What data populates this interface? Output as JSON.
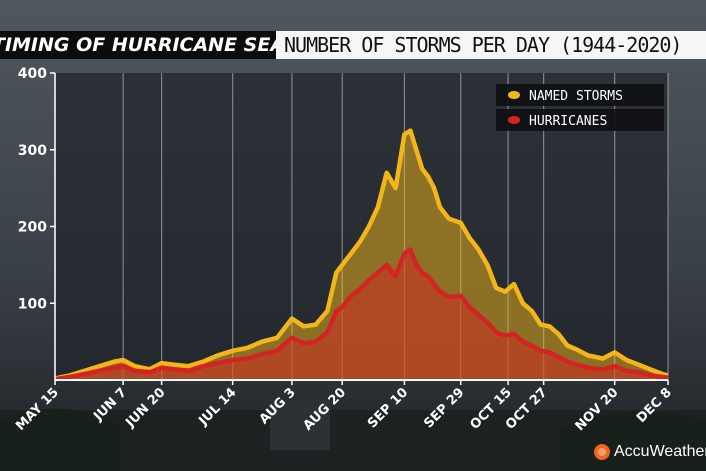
{
  "header": {
    "left_title": "TIMING OF HURRICANE SEASON",
    "right_title": "NUMBER OF STORMS PER DAY (1944-2020)"
  },
  "brand": {
    "name": "AccuWeather",
    "icon": "sun-icon",
    "accent": "#f26522"
  },
  "chart_data": {
    "type": "area",
    "title": "NUMBER OF STORMS PER DAY (1944-2020)",
    "ylim": [
      0,
      400
    ],
    "yticks": [
      100,
      200,
      300,
      400
    ],
    "xticks": [
      {
        "label": "MAY 15",
        "day": 0
      },
      {
        "label": "JUN 7",
        "day": 23
      },
      {
        "label": "JUN 20",
        "day": 36
      },
      {
        "label": "JUL 14",
        "day": 60
      },
      {
        "label": "AUG 3",
        "day": 80
      },
      {
        "label": "AUG 20",
        "day": 97
      },
      {
        "label": "SEP 10",
        "day": 118
      },
      {
        "label": "SEP 29",
        "day": 137
      },
      {
        "label": "OCT 15",
        "day": 153
      },
      {
        "label": "OCT 27",
        "day": 165
      },
      {
        "label": "NOV 20",
        "day": 189
      },
      {
        "label": "DEC 8",
        "day": 207
      }
    ],
    "grid": true,
    "legend_position": "top-right",
    "series": [
      {
        "name": "NAMED STORMS",
        "color": "#f2b61a",
        "points": [
          [
            0,
            2
          ],
          [
            5,
            6
          ],
          [
            10,
            12
          ],
          [
            15,
            18
          ],
          [
            20,
            24
          ],
          [
            23,
            26
          ],
          [
            27,
            18
          ],
          [
            32,
            14
          ],
          [
            36,
            22
          ],
          [
            40,
            20
          ],
          [
            45,
            18
          ],
          [
            50,
            24
          ],
          [
            55,
            32
          ],
          [
            60,
            38
          ],
          [
            65,
            42
          ],
          [
            70,
            50
          ],
          [
            75,
            55
          ],
          [
            80,
            80
          ],
          [
            84,
            70
          ],
          [
            88,
            72
          ],
          [
            92,
            90
          ],
          [
            95,
            140
          ],
          [
            97,
            150
          ],
          [
            100,
            165
          ],
          [
            103,
            180
          ],
          [
            106,
            200
          ],
          [
            109,
            225
          ],
          [
            112,
            270
          ],
          [
            115,
            250
          ],
          [
            118,
            320
          ],
          [
            120,
            325
          ],
          [
            122,
            300
          ],
          [
            124,
            275
          ],
          [
            126,
            265
          ],
          [
            128,
            250
          ],
          [
            130,
            225
          ],
          [
            133,
            210
          ],
          [
            137,
            205
          ],
          [
            140,
            185
          ],
          [
            143,
            170
          ],
          [
            146,
            150
          ],
          [
            149,
            120
          ],
          [
            152,
            115
          ],
          [
            155,
            125
          ],
          [
            158,
            100
          ],
          [
            161,
            90
          ],
          [
            164,
            72
          ],
          [
            167,
            70
          ],
          [
            170,
            60
          ],
          [
            173,
            45
          ],
          [
            176,
            40
          ],
          [
            180,
            32
          ],
          [
            185,
            28
          ],
          [
            189,
            36
          ],
          [
            193,
            26
          ],
          [
            197,
            20
          ],
          [
            201,
            14
          ],
          [
            205,
            8
          ],
          [
            207,
            6
          ]
        ]
      },
      {
        "name": "HURRICANES",
        "color": "#d42323",
        "points": [
          [
            0,
            1
          ],
          [
            5,
            4
          ],
          [
            10,
            8
          ],
          [
            15,
            12
          ],
          [
            20,
            16
          ],
          [
            23,
            18
          ],
          [
            27,
            12
          ],
          [
            32,
            10
          ],
          [
            36,
            16
          ],
          [
            40,
            14
          ],
          [
            45,
            12
          ],
          [
            50,
            18
          ],
          [
            55,
            22
          ],
          [
            60,
            26
          ],
          [
            65,
            28
          ],
          [
            70,
            34
          ],
          [
            75,
            38
          ],
          [
            80,
            55
          ],
          [
            84,
            48
          ],
          [
            88,
            50
          ],
          [
            92,
            62
          ],
          [
            95,
            90
          ],
          [
            97,
            95
          ],
          [
            100,
            110
          ],
          [
            103,
            118
          ],
          [
            106,
            130
          ],
          [
            109,
            140
          ],
          [
            112,
            150
          ],
          [
            115,
            135
          ],
          [
            118,
            165
          ],
          [
            120,
            170
          ],
          [
            122,
            150
          ],
          [
            124,
            140
          ],
          [
            126,
            135
          ],
          [
            128,
            125
          ],
          [
            130,
            115
          ],
          [
            133,
            108
          ],
          [
            137,
            110
          ],
          [
            140,
            95
          ],
          [
            143,
            85
          ],
          [
            146,
            75
          ],
          [
            149,
            62
          ],
          [
            152,
            58
          ],
          [
            155,
            60
          ],
          [
            158,
            50
          ],
          [
            161,
            45
          ],
          [
            164,
            38
          ],
          [
            167,
            36
          ],
          [
            170,
            30
          ],
          [
            173,
            24
          ],
          [
            176,
            20
          ],
          [
            180,
            16
          ],
          [
            185,
            14
          ],
          [
            189,
            18
          ],
          [
            193,
            12
          ],
          [
            197,
            10
          ],
          [
            201,
            6
          ],
          [
            205,
            4
          ],
          [
            207,
            3
          ]
        ]
      }
    ]
  }
}
